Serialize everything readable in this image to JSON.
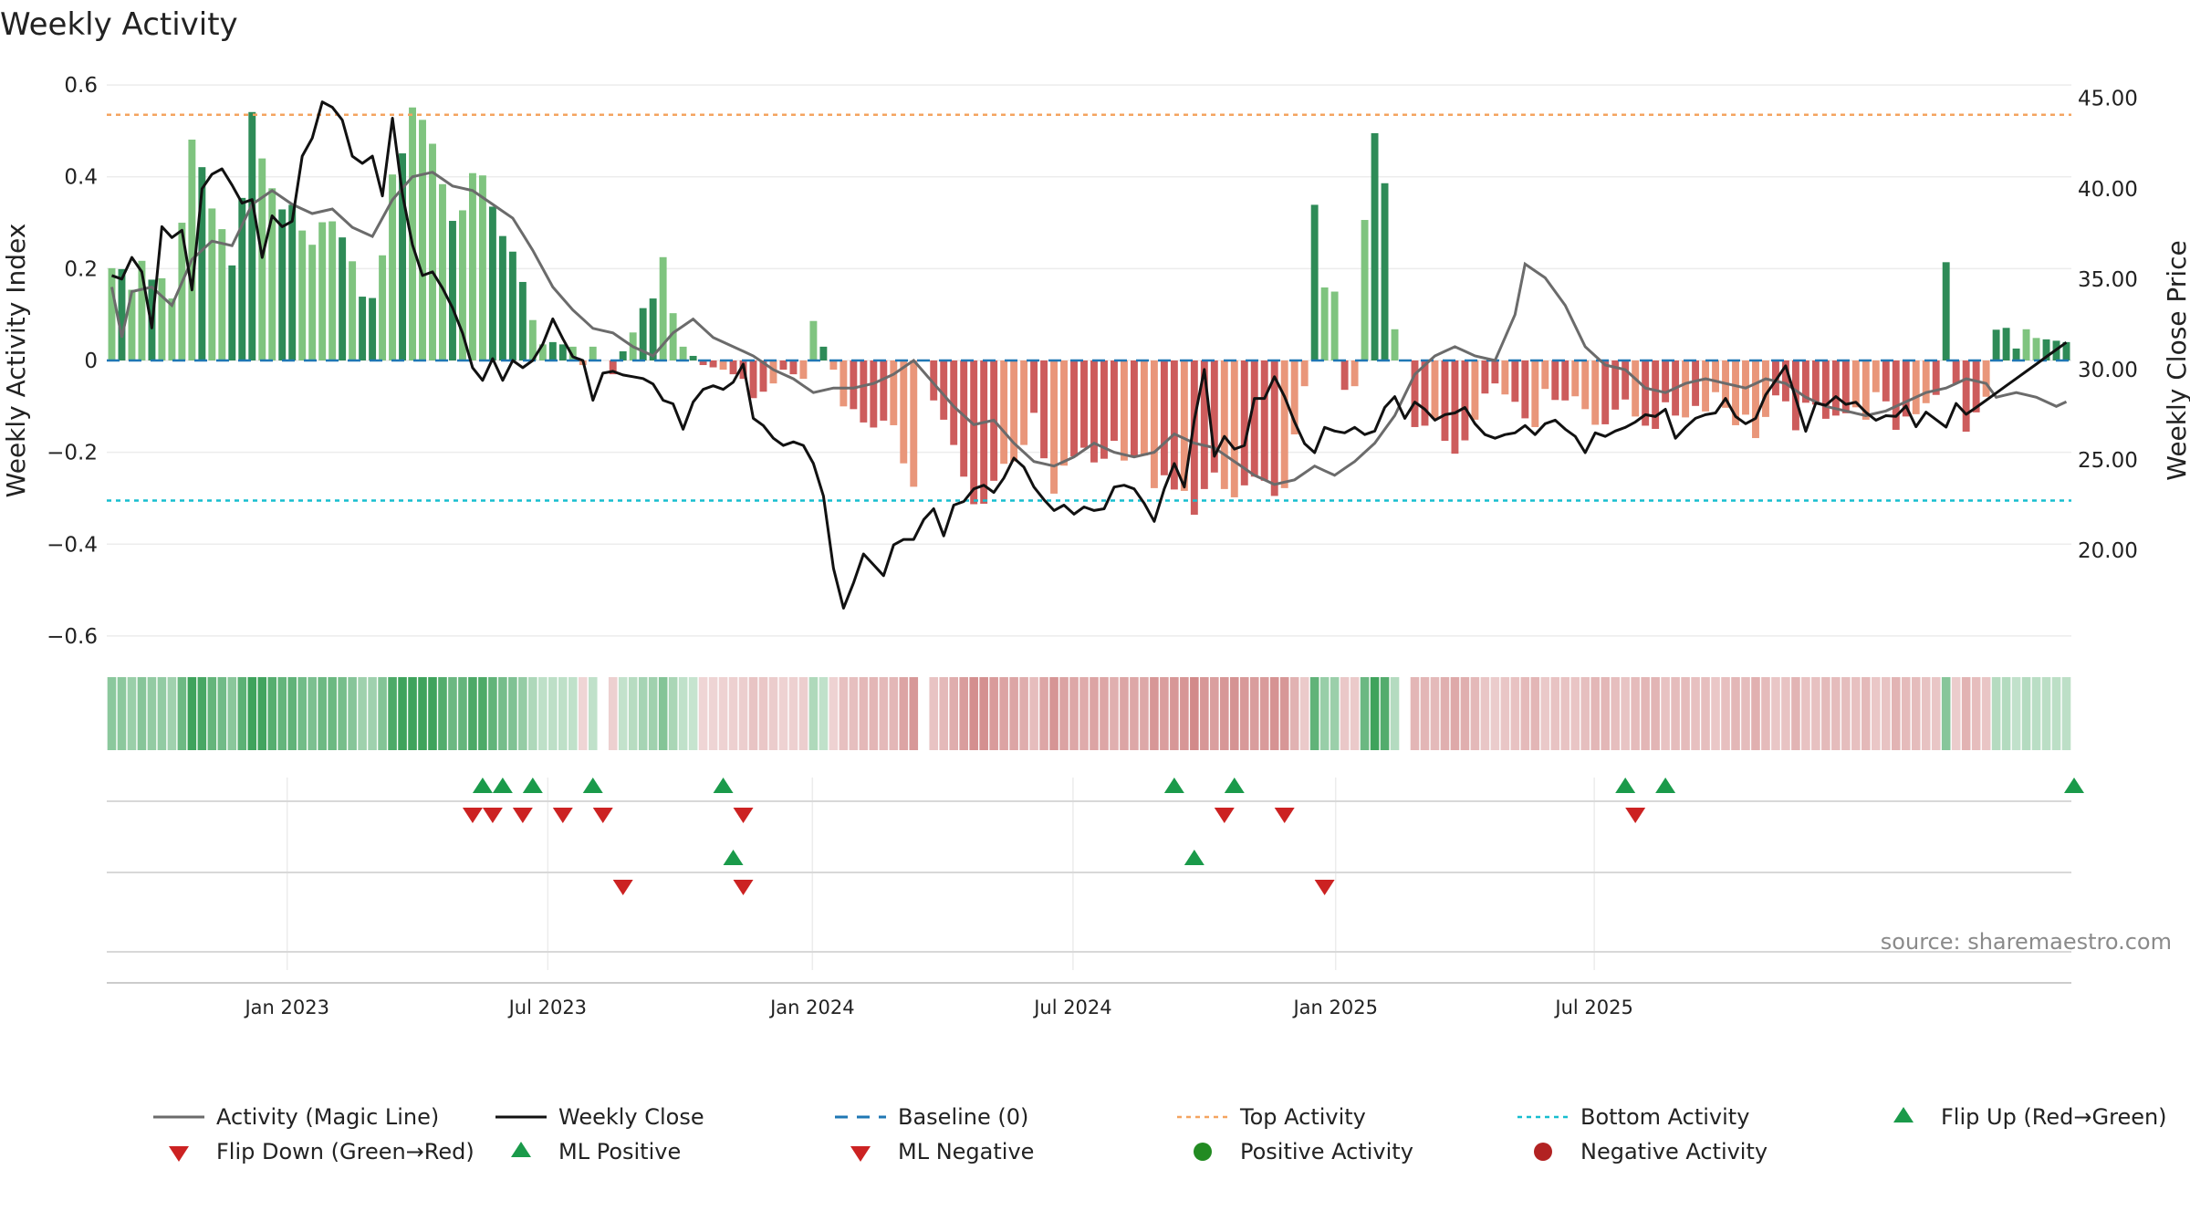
{
  "chart_data": {
    "type": "bar",
    "title": "Weekly Activity",
    "ylabel": "Weekly Activity Index",
    "y2label": "Weekly Close Price",
    "ylim": [
      -0.63,
      0.63
    ],
    "y2lim": [
      14.5,
      46.5
    ],
    "yticks": [
      0.6,
      0.4,
      0.2,
      0,
      -0.2,
      -0.4,
      -0.6
    ],
    "ytick_labels": [
      "0.6",
      "0.4",
      "0.2",
      "0",
      "−0.2",
      "−0.4",
      "−0.6"
    ],
    "y2ticks": [
      45,
      40,
      35,
      30,
      25,
      20
    ],
    "y2tick_labels": [
      "45.00",
      "40.00",
      "35.00",
      "30.00",
      "25.00",
      "20.00"
    ],
    "x_weeks": 196,
    "xticks": [
      {
        "label": "Jan 2023",
        "week": 18
      },
      {
        "label": "Jul 2023",
        "week": 44
      },
      {
        "label": "Jan 2024",
        "week": 70.4
      },
      {
        "label": "Jul 2024",
        "week": 96.4
      },
      {
        "label": "Jan 2025",
        "week": 122.6
      },
      {
        "label": "Jul 2025",
        "week": 148.4
      }
    ],
    "top_activity": 0.535,
    "bottom_activity": -0.305,
    "baseline": 0,
    "activity_keys": [
      [
        0,
        0.22
      ],
      [
        2,
        0.15
      ],
      [
        3,
        0.22
      ],
      [
        5,
        0.16
      ],
      [
        6,
        0.12
      ],
      [
        8,
        0.48
      ],
      [
        10,
        0.36
      ],
      [
        12,
        0.2
      ],
      [
        14,
        0.52
      ],
      [
        16,
        0.38
      ],
      [
        18,
        0.31
      ],
      [
        20,
        0.23
      ],
      [
        22,
        0.33
      ],
      [
        24,
        0.19
      ],
      [
        26,
        0.12
      ],
      [
        28,
        0.38
      ],
      [
        30,
        0.56
      ],
      [
        32,
        0.48
      ],
      [
        34,
        0.3
      ],
      [
        36,
        0.4
      ],
      [
        38,
        0.35
      ],
      [
        40,
        0.22
      ],
      [
        42,
        0.08
      ],
      [
        44,
        0.04
      ],
      [
        46,
        0.03
      ],
      [
        47,
        -0.01
      ],
      [
        48,
        0.03
      ],
      [
        50,
        -0.03
      ],
      [
        52,
        0.07
      ],
      [
        54,
        0.16
      ],
      [
        55,
        0.2
      ],
      [
        57,
        0.03
      ],
      [
        59,
        -0.01
      ],
      [
        61,
        -0.02
      ],
      [
        63,
        -0.04
      ],
      [
        65,
        -0.08
      ],
      [
        67,
        -0.02
      ],
      [
        69,
        -0.04
      ],
      [
        70,
        0.08
      ],
      [
        72,
        -0.02
      ],
      [
        74,
        -0.12
      ],
      [
        76,
        -0.13
      ],
      [
        78,
        -0.17
      ],
      [
        80,
        -0.25
      ],
      [
        81,
        0.0
      ],
      [
        82,
        -0.08
      ],
      [
        84,
        -0.2
      ],
      [
        86,
        -0.32
      ],
      [
        88,
        -0.26
      ],
      [
        90,
        -0.2
      ],
      [
        92,
        -0.14
      ],
      [
        94,
        -0.3
      ],
      [
        96,
        -0.2
      ],
      [
        98,
        -0.22
      ],
      [
        100,
        -0.18
      ],
      [
        102,
        -0.2
      ],
      [
        104,
        -0.26
      ],
      [
        106,
        -0.29
      ],
      [
        108,
        -0.31
      ],
      [
        110,
        -0.27
      ],
      [
        112,
        -0.3
      ],
      [
        114,
        -0.26
      ],
      [
        116,
        -0.32
      ],
      [
        118,
        -0.18
      ],
      [
        119,
        -0.08
      ],
      [
        120,
        0.35
      ],
      [
        121,
        0.18
      ],
      [
        122,
        0.12
      ],
      [
        123,
        -0.07
      ],
      [
        124,
        -0.07
      ],
      [
        125,
        0.3
      ],
      [
        126,
        0.48
      ],
      [
        127,
        0.38
      ],
      [
        128,
        0.08
      ],
      [
        129,
        0.0
      ],
      [
        130,
        -0.12
      ],
      [
        132,
        -0.15
      ],
      [
        134,
        -0.19
      ],
      [
        136,
        -0.1
      ],
      [
        138,
        -0.05
      ],
      [
        140,
        -0.08
      ],
      [
        142,
        -0.12
      ],
      [
        144,
        -0.06
      ],
      [
        146,
        -0.08
      ],
      [
        148,
        -0.13
      ],
      [
        150,
        -0.1
      ],
      [
        152,
        -0.12
      ],
      [
        154,
        -0.13
      ],
      [
        156,
        -0.11
      ],
      [
        158,
        -0.1
      ],
      [
        160,
        -0.07
      ],
      [
        162,
        -0.12
      ],
      [
        164,
        -0.15
      ],
      [
        166,
        -0.1
      ],
      [
        168,
        -0.13
      ],
      [
        170,
        -0.11
      ],
      [
        172,
        -0.1
      ],
      [
        174,
        -0.12
      ],
      [
        176,
        -0.09
      ],
      [
        178,
        -0.14
      ],
      [
        180,
        -0.1
      ],
      [
        182,
        -0.06
      ],
      [
        183,
        0.2
      ],
      [
        184,
        -0.05
      ],
      [
        185,
        -0.14
      ],
      [
        186,
        -0.13
      ],
      [
        187,
        -0.08
      ],
      [
        188,
        0.06
      ],
      [
        195,
        0.04
      ]
    ],
    "magic_keys": [
      [
        0,
        0.16
      ],
      [
        1,
        0.05
      ],
      [
        2,
        0.15
      ],
      [
        4,
        0.16
      ],
      [
        6,
        0.12
      ],
      [
        8,
        0.22
      ],
      [
        10,
        0.26
      ],
      [
        12,
        0.25
      ],
      [
        14,
        0.34
      ],
      [
        16,
        0.37
      ],
      [
        18,
        0.34
      ],
      [
        20,
        0.32
      ],
      [
        22,
        0.33
      ],
      [
        24,
        0.29
      ],
      [
        26,
        0.27
      ],
      [
        28,
        0.35
      ],
      [
        30,
        0.4
      ],
      [
        32,
        0.41
      ],
      [
        34,
        0.38
      ],
      [
        36,
        0.37
      ],
      [
        38,
        0.34
      ],
      [
        40,
        0.31
      ],
      [
        42,
        0.24
      ],
      [
        44,
        0.16
      ],
      [
        46,
        0.11
      ],
      [
        48,
        0.07
      ],
      [
        50,
        0.06
      ],
      [
        52,
        0.03
      ],
      [
        54,
        0.01
      ],
      [
        56,
        0.06
      ],
      [
        58,
        0.09
      ],
      [
        60,
        0.05
      ],
      [
        62,
        0.03
      ],
      [
        64,
        0.01
      ],
      [
        66,
        -0.02
      ],
      [
        68,
        -0.04
      ],
      [
        70,
        -0.07
      ],
      [
        72,
        -0.06
      ],
      [
        74,
        -0.06
      ],
      [
        76,
        -0.05
      ],
      [
        78,
        -0.03
      ],
      [
        80,
        0.0
      ],
      [
        82,
        -0.05
      ],
      [
        84,
        -0.1
      ],
      [
        86,
        -0.14
      ],
      [
        88,
        -0.13
      ],
      [
        90,
        -0.18
      ],
      [
        92,
        -0.22
      ],
      [
        94,
        -0.23
      ],
      [
        96,
        -0.21
      ],
      [
        98,
        -0.18
      ],
      [
        100,
        -0.2
      ],
      [
        102,
        -0.21
      ],
      [
        104,
        -0.2
      ],
      [
        106,
        -0.16
      ],
      [
        108,
        -0.18
      ],
      [
        110,
        -0.19
      ],
      [
        112,
        -0.22
      ],
      [
        114,
        -0.25
      ],
      [
        116,
        -0.27
      ],
      [
        118,
        -0.26
      ],
      [
        120,
        -0.23
      ],
      [
        122,
        -0.25
      ],
      [
        124,
        -0.22
      ],
      [
        126,
        -0.18
      ],
      [
        128,
        -0.12
      ],
      [
        130,
        -0.03
      ],
      [
        132,
        0.01
      ],
      [
        134,
        0.03
      ],
      [
        136,
        0.01
      ],
      [
        138,
        0.0
      ],
      [
        140,
        0.1
      ],
      [
        141,
        0.21
      ],
      [
        143,
        0.18
      ],
      [
        145,
        0.12
      ],
      [
        147,
        0.03
      ],
      [
        149,
        -0.01
      ],
      [
        151,
        -0.02
      ],
      [
        153,
        -0.06
      ],
      [
        155,
        -0.07
      ],
      [
        157,
        -0.05
      ],
      [
        159,
        -0.04
      ],
      [
        161,
        -0.05
      ],
      [
        163,
        -0.06
      ],
      [
        165,
        -0.04
      ],
      [
        167,
        -0.05
      ],
      [
        169,
        -0.08
      ],
      [
        171,
        -0.1
      ],
      [
        173,
        -0.11
      ],
      [
        175,
        -0.12
      ],
      [
        177,
        -0.11
      ],
      [
        179,
        -0.09
      ],
      [
        181,
        -0.07
      ],
      [
        183,
        -0.06
      ],
      [
        185,
        -0.04
      ],
      [
        187,
        -0.05
      ],
      [
        188,
        -0.08
      ],
      [
        190,
        -0.07
      ],
      [
        192,
        -0.08
      ],
      [
        194,
        -0.1
      ],
      [
        195,
        -0.09
      ]
    ],
    "close_keys": [
      [
        0,
        35.2
      ],
      [
        1,
        35.0
      ],
      [
        2,
        36.2
      ],
      [
        3,
        35.4
      ],
      [
        4,
        32.3
      ],
      [
        5,
        37.9
      ],
      [
        6,
        37.3
      ],
      [
        7,
        37.7
      ],
      [
        8,
        34.4
      ],
      [
        9,
        40.0
      ],
      [
        10,
        40.8
      ],
      [
        11,
        41.1
      ],
      [
        12,
        40.2
      ],
      [
        13,
        39.2
      ],
      [
        14,
        39.4
      ],
      [
        15,
        36.2
      ],
      [
        16,
        38.5
      ],
      [
        17,
        37.9
      ],
      [
        18,
        38.2
      ],
      [
        19,
        41.8
      ],
      [
        20,
        42.8
      ],
      [
        21,
        44.8
      ],
      [
        22,
        44.5
      ],
      [
        23,
        43.8
      ],
      [
        24,
        41.8
      ],
      [
        25,
        41.4
      ],
      [
        26,
        41.8
      ],
      [
        27,
        39.6
      ],
      [
        28,
        43.9
      ],
      [
        29,
        39.7
      ],
      [
        30,
        36.9
      ],
      [
        31,
        35.2
      ],
      [
        32,
        35.4
      ],
      [
        33,
        34.5
      ],
      [
        34,
        33.4
      ],
      [
        35,
        32.0
      ],
      [
        36,
        30.1
      ],
      [
        37,
        29.4
      ],
      [
        38,
        30.6
      ],
      [
        39,
        29.4
      ],
      [
        40,
        30.5
      ],
      [
        41,
        30.1
      ],
      [
        42,
        30.5
      ],
      [
        43,
        31.4
      ],
      [
        44,
        32.8
      ],
      [
        45,
        31.7
      ],
      [
        46,
        30.7
      ],
      [
        47,
        30.5
      ],
      [
        48,
        28.3
      ],
      [
        49,
        29.8
      ],
      [
        50,
        29.9
      ],
      [
        51,
        29.7
      ],
      [
        52,
        29.6
      ],
      [
        53,
        29.5
      ],
      [
        54,
        29.2
      ],
      [
        55,
        28.3
      ],
      [
        56,
        28.1
      ],
      [
        57,
        26.7
      ],
      [
        58,
        28.2
      ],
      [
        59,
        28.9
      ],
      [
        60,
        29.1
      ],
      [
        61,
        28.9
      ],
      [
        62,
        29.3
      ],
      [
        63,
        30.3
      ],
      [
        64,
        27.3
      ],
      [
        65,
        26.9
      ],
      [
        66,
        26.2
      ],
      [
        67,
        25.8
      ],
      [
        68,
        26.0
      ],
      [
        69,
        25.8
      ],
      [
        70,
        24.8
      ],
      [
        71,
        23.0
      ],
      [
        72,
        19.0
      ],
      [
        73,
        16.8
      ],
      [
        74,
        18.2
      ],
      [
        75,
        19.8
      ],
      [
        76,
        19.2
      ],
      [
        77,
        18.6
      ],
      [
        78,
        20.3
      ],
      [
        79,
        20.6
      ],
      [
        80,
        20.6
      ],
      [
        81,
        21.7
      ],
      [
        82,
        22.3
      ],
      [
        83,
        20.8
      ],
      [
        84,
        22.5
      ],
      [
        85,
        22.7
      ],
      [
        86,
        23.4
      ],
      [
        87,
        23.6
      ],
      [
        88,
        23.2
      ],
      [
        89,
        24.0
      ],
      [
        90,
        25.1
      ],
      [
        91,
        24.6
      ],
      [
        92,
        23.5
      ],
      [
        93,
        22.8
      ],
      [
        94,
        22.2
      ],
      [
        95,
        22.5
      ],
      [
        96,
        22.0
      ],
      [
        97,
        22.4
      ],
      [
        98,
        22.2
      ],
      [
        99,
        22.3
      ],
      [
        100,
        23.5
      ],
      [
        101,
        23.6
      ],
      [
        102,
        23.4
      ],
      [
        103,
        22.6
      ],
      [
        104,
        21.6
      ],
      [
        105,
        23.4
      ],
      [
        106,
        24.8
      ],
      [
        107,
        23.5
      ],
      [
        108,
        27.2
      ],
      [
        109,
        30.0
      ],
      [
        110,
        25.2
      ],
      [
        111,
        26.3
      ],
      [
        112,
        25.6
      ],
      [
        113,
        25.8
      ],
      [
        114,
        28.4
      ],
      [
        115,
        28.4
      ],
      [
        116,
        29.6
      ],
      [
        117,
        28.5
      ],
      [
        118,
        27.1
      ],
      [
        119,
        25.9
      ],
      [
        120,
        25.4
      ],
      [
        121,
        26.8
      ],
      [
        122,
        26.6
      ],
      [
        123,
        26.5
      ],
      [
        124,
        26.8
      ],
      [
        125,
        26.4
      ],
      [
        126,
        26.6
      ],
      [
        127,
        27.9
      ],
      [
        128,
        28.5
      ],
      [
        129,
        27.3
      ],
      [
        130,
        28.2
      ],
      [
        131,
        27.8
      ],
      [
        132,
        27.2
      ],
      [
        133,
        27.5
      ],
      [
        134,
        27.6
      ],
      [
        135,
        27.9
      ],
      [
        136,
        27.0
      ],
      [
        137,
        26.4
      ],
      [
        138,
        26.2
      ],
      [
        139,
        26.4
      ],
      [
        140,
        26.5
      ],
      [
        141,
        26.9
      ],
      [
        142,
        26.4
      ],
      [
        143,
        27.0
      ],
      [
        144,
        27.2
      ],
      [
        145,
        26.7
      ],
      [
        146,
        26.3
      ],
      [
        147,
        25.4
      ],
      [
        148,
        26.5
      ],
      [
        149,
        26.3
      ],
      [
        150,
        26.6
      ],
      [
        151,
        26.8
      ],
      [
        152,
        27.1
      ],
      [
        153,
        27.5
      ],
      [
        154,
        27.4
      ],
      [
        155,
        27.8
      ],
      [
        156,
        26.2
      ],
      [
        157,
        26.8
      ],
      [
        158,
        27.3
      ],
      [
        159,
        27.5
      ],
      [
        160,
        27.6
      ],
      [
        161,
        28.4
      ],
      [
        162,
        27.4
      ],
      [
        163,
        27.0
      ],
      [
        164,
        27.3
      ],
      [
        165,
        28.6
      ],
      [
        166,
        29.4
      ],
      [
        167,
        30.2
      ],
      [
        195,
        30.2
      ]
    ],
    "flip_up": [
      37,
      39,
      42,
      48,
      61,
      106,
      112,
      151,
      155
    ],
    "flip_down": [
      36,
      38,
      41,
      45,
      49,
      63,
      111,
      117,
      152
    ],
    "ml_positive": [
      62,
      108
    ],
    "ml_negative": [
      51,
      63,
      121
    ],
    "legend": [
      "Activity (Magic Line)",
      "Weekly Close",
      "Baseline (0)",
      "Top Activity",
      "Bottom Activity",
      "Flip Up (Red→Green)",
      "Flip Down (Green→Red)",
      "ML Positive",
      "ML Negative",
      "Positive Activity",
      "Negative Activity"
    ],
    "legend_position": "bottom",
    "source": "source: sharemaestro.com",
    "colors": {
      "pos_dark": "#2e8b57",
      "pos_light": "#7fc47f",
      "neg_dark": "#cd5c5c",
      "neg_light": "#e9967a",
      "magic": "#6b6b6b",
      "close": "#111111",
      "baseline": "#1f77b4",
      "top": "#f4a460",
      "bottom": "#17becf",
      "flip_up": "#1a9a4a",
      "flip_down": "#cc2222",
      "pos_dot": "#228b22",
      "neg_dot": "#b22222"
    }
  }
}
